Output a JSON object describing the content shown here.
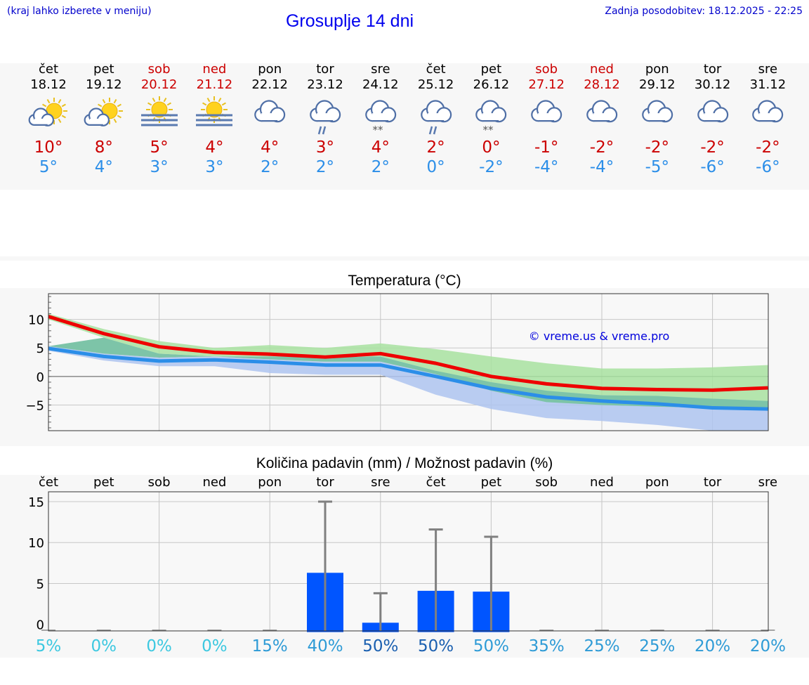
{
  "header": {
    "menu_hint": "(kraj lahko izberete v meniju)",
    "title": "Grosuplje 14 dni",
    "updated": "Zadnja posodobitev: 18.12.2025 - 22:25"
  },
  "days": [
    {
      "name": "čet",
      "date": "18.12",
      "weekend": false,
      "icon": "sun-cloud-icon",
      "tmax": "10°",
      "tmin": "5°"
    },
    {
      "name": "pet",
      "date": "19.12",
      "weekend": false,
      "icon": "sun-cloud-icon",
      "tmax": "8°",
      "tmin": "4°"
    },
    {
      "name": "sob",
      "date": "20.12",
      "weekend": true,
      "icon": "sun-fog-icon",
      "tmax": "5°",
      "tmin": "3°"
    },
    {
      "name": "ned",
      "date": "21.12",
      "weekend": true,
      "icon": "sun-fog-icon",
      "tmax": "4°",
      "tmin": "3°"
    },
    {
      "name": "pon",
      "date": "22.12",
      "weekend": false,
      "icon": "cloudy-icon",
      "tmax": "4°",
      "tmin": "2°"
    },
    {
      "name": "tor",
      "date": "23.12",
      "weekend": false,
      "icon": "cloud-rain-icon",
      "tmax": "3°",
      "tmin": "2°"
    },
    {
      "name": "sre",
      "date": "24.12",
      "weekend": false,
      "icon": "cloud-snow-icon",
      "tmax": "4°",
      "tmin": "2°"
    },
    {
      "name": "čet",
      "date": "25.12",
      "weekend": false,
      "icon": "cloud-rain-icon",
      "tmax": "2°",
      "tmin": "0°"
    },
    {
      "name": "pet",
      "date": "26.12",
      "weekend": false,
      "icon": "cloud-snow-icon",
      "tmax": "0°",
      "tmin": "-2°"
    },
    {
      "name": "sob",
      "date": "27.12",
      "weekend": true,
      "icon": "cloudy-icon",
      "tmax": "-1°",
      "tmin": "-4°"
    },
    {
      "name": "ned",
      "date": "28.12",
      "weekend": true,
      "icon": "cloudy-icon",
      "tmax": "-2°",
      "tmin": "-4°"
    },
    {
      "name": "pon",
      "date": "29.12",
      "weekend": false,
      "icon": "cloudy-icon",
      "tmax": "-2°",
      "tmin": "-5°"
    },
    {
      "name": "tor",
      "date": "30.12",
      "weekend": false,
      "icon": "cloudy-icon",
      "tmax": "-2°",
      "tmin": "-6°"
    },
    {
      "name": "sre",
      "date": "31.12",
      "weekend": false,
      "icon": "cloudy-icon",
      "tmax": "-2°",
      "tmin": "-6°"
    }
  ],
  "colors": {
    "max_line": "#ee0000",
    "min_line": "#2b8ee8",
    "max_band": "#a8e2a0",
    "min_band": "#aec4f0",
    "overlap_band": "#7dc4a8",
    "bar": "#0055ff",
    "error": "#808080",
    "weekend_text": "#cc0000",
    "pct_light": "#3cc8e0",
    "pct_mid": "#2e9bd6",
    "pct_dark": "#1a5fb0"
  },
  "chart_data": [
    {
      "type": "line",
      "title": "Temperatura (°C)",
      "watermark": "© vreme.us & vreme.pro",
      "ylim": [
        -9.5,
        14.5
      ],
      "yticks": [
        10,
        5,
        0,
        -5
      ],
      "ytick_labels": [
        "10",
        "5",
        "0",
        "−5"
      ],
      "x": [
        0,
        1,
        2,
        3,
        4,
        5,
        6,
        7,
        8,
        9,
        10,
        11,
        12,
        13
      ],
      "series": [
        {
          "name": "max",
          "values": [
            10.5,
            7.5,
            5.2,
            4.2,
            3.9,
            3.4,
            4.0,
            2.3,
            0.0,
            -1.3,
            -2.1,
            -2.3,
            -2.4,
            -2.0
          ]
        },
        {
          "name": "max_upper",
          "values": [
            11.0,
            8.3,
            6.2,
            5.0,
            5.5,
            5.0,
            5.8,
            4.8,
            3.5,
            2.3,
            1.4,
            1.4,
            1.6,
            2.0
          ]
        },
        {
          "name": "max_lower",
          "values": [
            10.0,
            6.8,
            4.0,
            3.5,
            3.5,
            3.4,
            3.5,
            1.0,
            -2.5,
            -4.5,
            -5.0,
            -5.3,
            -5.5,
            -5.7
          ]
        },
        {
          "name": "min",
          "values": [
            4.9,
            3.5,
            2.7,
            2.9,
            2.5,
            2.0,
            2.0,
            0.0,
            -2.1,
            -3.6,
            -4.3,
            -4.8,
            -5.5,
            -5.7
          ]
        },
        {
          "name": "min_upper",
          "values": [
            5.3,
            4.0,
            3.3,
            3.5,
            3.0,
            2.6,
            2.6,
            0.4,
            -1.0,
            -2.5,
            -3.3,
            -3.4,
            -3.9,
            -4.3
          ]
        },
        {
          "name": "min_lower",
          "values": [
            4.5,
            2.8,
            1.8,
            1.8,
            0.6,
            0.3,
            0.3,
            -3.2,
            -5.7,
            -7.3,
            -7.8,
            -8.5,
            -9.5,
            -9.5
          ]
        }
      ]
    },
    {
      "type": "bar",
      "title": "Količina padavin (mm) / Možnost padavin (%)",
      "categories": [
        "čet",
        "pet",
        "sob",
        "ned",
        "pon",
        "tor",
        "sre",
        "čet",
        "pet",
        "sob",
        "ned",
        "pon",
        "tor",
        "sre"
      ],
      "values": [
        0,
        0,
        0,
        0,
        0,
        6.3,
        0.2,
        4.1,
        4.0,
        0,
        0,
        0,
        0,
        0
      ],
      "error_high": [
        0,
        0,
        0,
        0,
        0,
        15.0,
        3.8,
        11.6,
        10.7,
        0,
        0,
        0,
        0,
        0
      ],
      "ylim": [
        -0.8,
        16.2
      ],
      "yticks": [
        0,
        5,
        10,
        15
      ],
      "ytick_labels": [
        "0",
        "5",
        "10",
        "15"
      ],
      "probability": [
        "5%",
        "0%",
        "0%",
        "0%",
        "15%",
        "40%",
        "50%",
        "50%",
        "50%",
        "35%",
        "25%",
        "25%",
        "20%",
        "20%"
      ],
      "probability_level": [
        "light",
        "light",
        "light",
        "light",
        "mid",
        "mid",
        "dark",
        "dark",
        "mid",
        "mid",
        "mid",
        "mid",
        "mid",
        "mid"
      ]
    }
  ]
}
